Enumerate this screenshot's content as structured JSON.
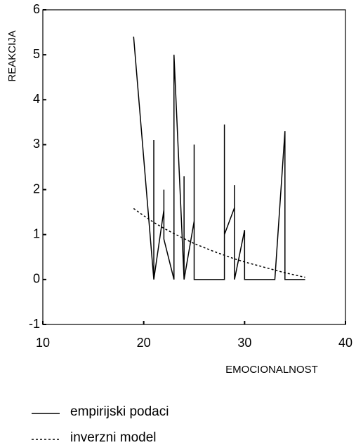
{
  "chart_data": {
    "type": "line",
    "xlabel": "EMOCIONALNOST",
    "ylabel": "REAKCIJA",
    "xlim": [
      10,
      40
    ],
    "xticks": [
      10,
      20,
      30,
      40
    ],
    "ylim": [
      -1,
      6
    ],
    "yticks": [
      -1,
      0,
      1,
      2,
      3,
      4,
      5,
      6
    ],
    "series": [
      {
        "name": "empirijski podaci",
        "color": "#000000",
        "style": "solid",
        "x": [
          19,
          21,
          21,
          21,
          22,
          22,
          22,
          23,
          23,
          24,
          24,
          24,
          25,
          25,
          25,
          28,
          28,
          28,
          29,
          29,
          29,
          30,
          30,
          33,
          34,
          34,
          36
        ],
        "values": [
          5.4,
          0,
          3.1,
          0,
          1.55,
          2.0,
          0.9,
          0,
          5.0,
          0,
          2.3,
          0,
          1.3,
          3.0,
          0,
          0,
          3.45,
          1.0,
          1.6,
          2.1,
          0,
          1.1,
          0,
          0,
          3.3,
          0,
          0
        ]
      },
      {
        "name": "inverzni model",
        "color": "#000000",
        "style": "dotted",
        "x": [
          19,
          20,
          21,
          22,
          23,
          24,
          25,
          26,
          27,
          28,
          29,
          30,
          31,
          32,
          33,
          34,
          35,
          36
        ],
        "values": [
          1.58,
          1.42,
          1.27,
          1.14,
          1.02,
          0.91,
          0.8,
          0.71,
          0.62,
          0.54,
          0.46,
          0.39,
          0.33,
          0.27,
          0.21,
          0.15,
          0.1,
          0.05
        ]
      }
    ]
  }
}
